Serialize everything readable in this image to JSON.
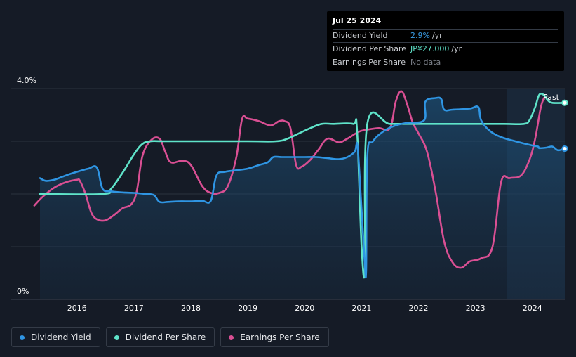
{
  "tooltip": {
    "date": "Jul 25 2024",
    "rows": [
      {
        "label": "Dividend Yield",
        "value": "2.9%",
        "unit": "/yr"
      },
      {
        "label": "Dividend Per Share",
        "value": "JP¥27.000",
        "unit": "/yr"
      },
      {
        "label": "Earnings Per Share",
        "value": "No data",
        "unit": ""
      }
    ]
  },
  "legend": [
    {
      "label": "Dividend Yield",
      "color": "#2f95e3"
    },
    {
      "label": "Dividend Per Share",
      "color": "#5fe3c9"
    },
    {
      "label": "Earnings Per Share",
      "color": "#d94f93"
    }
  ],
  "past_label": "Past",
  "chart_data": {
    "type": "line",
    "y_labels": [
      "4.0%",
      "0%"
    ],
    "ylim": [
      0,
      4.0
    ],
    "xlim": [
      2015.35,
      2024.57
    ],
    "x_ticks": [
      "2016",
      "2017",
      "2018",
      "2019",
      "2020",
      "2021",
      "2022",
      "2023",
      "2024"
    ],
    "grid": true,
    "forecast_start": 2023.55,
    "series": [
      {
        "name": "Dividend Yield",
        "color": "#2f95e3",
        "points": [
          [
            2015.35,
            2.3
          ],
          [
            2015.45,
            2.25
          ],
          [
            2015.6,
            2.27
          ],
          [
            2015.8,
            2.35
          ],
          [
            2016.0,
            2.42
          ],
          [
            2016.2,
            2.48
          ],
          [
            2016.35,
            2.5
          ],
          [
            2016.45,
            2.1
          ],
          [
            2016.6,
            2.05
          ],
          [
            2016.8,
            2.03
          ],
          [
            2017.0,
            2.02
          ],
          [
            2017.2,
            2.0
          ],
          [
            2017.35,
            1.98
          ],
          [
            2017.45,
            1.85
          ],
          [
            2017.6,
            1.85
          ],
          [
            2017.8,
            1.86
          ],
          [
            2018.0,
            1.86
          ],
          [
            2018.2,
            1.87
          ],
          [
            2018.35,
            1.87
          ],
          [
            2018.45,
            2.35
          ],
          [
            2018.6,
            2.42
          ],
          [
            2018.8,
            2.45
          ],
          [
            2019.0,
            2.48
          ],
          [
            2019.2,
            2.55
          ],
          [
            2019.35,
            2.6
          ],
          [
            2019.45,
            2.7
          ],
          [
            2019.6,
            2.7
          ],
          [
            2019.8,
            2.7
          ],
          [
            2020.0,
            2.7
          ],
          [
            2020.2,
            2.7
          ],
          [
            2020.4,
            2.68
          ],
          [
            2020.6,
            2.66
          ],
          [
            2020.75,
            2.7
          ],
          [
            2020.88,
            2.8
          ],
          [
            2020.93,
            2.9
          ],
          [
            2021.0,
            1.7
          ],
          [
            2021.05,
            0.8
          ],
          [
            2021.08,
            0.55
          ],
          [
            2021.1,
            2.7
          ],
          [
            2021.2,
            3.0
          ],
          [
            2021.4,
            3.2
          ],
          [
            2021.6,
            3.3
          ],
          [
            2021.8,
            3.35
          ],
          [
            2022.1,
            3.4
          ],
          [
            2022.12,
            3.75
          ],
          [
            2022.3,
            3.82
          ],
          [
            2022.4,
            3.8
          ],
          [
            2022.45,
            3.6
          ],
          [
            2022.6,
            3.6
          ],
          [
            2022.9,
            3.62
          ],
          [
            2023.05,
            3.65
          ],
          [
            2023.1,
            3.4
          ],
          [
            2023.25,
            3.2
          ],
          [
            2023.45,
            3.08
          ],
          [
            2023.7,
            3.0
          ],
          [
            2024.0,
            2.92
          ],
          [
            2024.1,
            2.9
          ],
          [
            2024.12,
            2.87
          ],
          [
            2024.25,
            2.88
          ],
          [
            2024.35,
            2.9
          ],
          [
            2024.45,
            2.83
          ],
          [
            2024.57,
            2.86
          ]
        ]
      },
      {
        "name": "Dividend Per Share",
        "color": "#5fe3c9",
        "points": [
          [
            2015.35,
            2.0
          ],
          [
            2016.45,
            2.0
          ],
          [
            2016.6,
            2.1
          ],
          [
            2016.8,
            2.4
          ],
          [
            2017.0,
            2.75
          ],
          [
            2017.15,
            2.95
          ],
          [
            2017.3,
            3.0
          ],
          [
            2017.5,
            3.0
          ],
          [
            2018.0,
            3.0
          ],
          [
            2019.0,
            3.0
          ],
          [
            2019.5,
            3.0
          ],
          [
            2019.7,
            3.05
          ],
          [
            2019.9,
            3.15
          ],
          [
            2020.1,
            3.25
          ],
          [
            2020.3,
            3.33
          ],
          [
            2020.5,
            3.33
          ],
          [
            2020.85,
            3.33
          ],
          [
            2020.92,
            3.2
          ],
          [
            2021.0,
            1.0
          ],
          [
            2021.06,
            0.6
          ],
          [
            2021.1,
            3.33
          ],
          [
            2021.5,
            3.33
          ],
          [
            2022.0,
            3.33
          ],
          [
            2022.5,
            3.33
          ],
          [
            2023.0,
            3.33
          ],
          [
            2023.5,
            3.33
          ],
          [
            2023.85,
            3.33
          ],
          [
            2023.95,
            3.4
          ],
          [
            2024.05,
            3.65
          ],
          [
            2024.12,
            3.88
          ],
          [
            2024.2,
            3.88
          ],
          [
            2024.27,
            3.78
          ],
          [
            2024.35,
            3.73
          ],
          [
            2024.57,
            3.73
          ]
        ]
      },
      {
        "name": "Earnings Per Share",
        "color": "#d94f93",
        "points": [
          [
            2015.25,
            1.78
          ],
          [
            2015.4,
            1.95
          ],
          [
            2015.6,
            2.12
          ],
          [
            2015.8,
            2.22
          ],
          [
            2016.0,
            2.27
          ],
          [
            2016.05,
            2.25
          ],
          [
            2016.15,
            2.0
          ],
          [
            2016.25,
            1.65
          ],
          [
            2016.35,
            1.52
          ],
          [
            2016.5,
            1.5
          ],
          [
            2016.65,
            1.6
          ],
          [
            2016.8,
            1.73
          ],
          [
            2016.95,
            1.8
          ],
          [
            2017.05,
            2.05
          ],
          [
            2017.15,
            2.72
          ],
          [
            2017.3,
            3.02
          ],
          [
            2017.45,
            3.05
          ],
          [
            2017.55,
            2.8
          ],
          [
            2017.65,
            2.6
          ],
          [
            2017.85,
            2.63
          ],
          [
            2018.0,
            2.55
          ],
          [
            2018.2,
            2.15
          ],
          [
            2018.35,
            2.02
          ],
          [
            2018.5,
            2.02
          ],
          [
            2018.65,
            2.15
          ],
          [
            2018.8,
            2.7
          ],
          [
            2018.9,
            3.42
          ],
          [
            2019.0,
            3.43
          ],
          [
            2019.2,
            3.38
          ],
          [
            2019.4,
            3.3
          ],
          [
            2019.55,
            3.38
          ],
          [
            2019.65,
            3.38
          ],
          [
            2019.75,
            3.25
          ],
          [
            2019.85,
            2.55
          ],
          [
            2019.95,
            2.52
          ],
          [
            2020.1,
            2.65
          ],
          [
            2020.25,
            2.85
          ],
          [
            2020.4,
            3.05
          ],
          [
            2020.6,
            2.98
          ],
          [
            2020.75,
            3.05
          ],
          [
            2020.95,
            3.18
          ],
          [
            2021.1,
            3.22
          ],
          [
            2021.3,
            3.25
          ],
          [
            2021.5,
            3.25
          ],
          [
            2021.6,
            3.75
          ],
          [
            2021.7,
            3.95
          ],
          [
            2021.8,
            3.7
          ],
          [
            2021.9,
            3.35
          ],
          [
            2022.0,
            3.15
          ],
          [
            2022.15,
            2.8
          ],
          [
            2022.3,
            2.05
          ],
          [
            2022.45,
            1.1
          ],
          [
            2022.6,
            0.7
          ],
          [
            2022.75,
            0.6
          ],
          [
            2022.9,
            0.72
          ],
          [
            2023.1,
            0.78
          ],
          [
            2023.3,
            1.0
          ],
          [
            2023.45,
            2.22
          ],
          [
            2023.6,
            2.3
          ],
          [
            2023.8,
            2.35
          ],
          [
            2023.95,
            2.65
          ],
          [
            2024.05,
            3.05
          ],
          [
            2024.15,
            3.65
          ],
          [
            2024.22,
            3.85
          ]
        ]
      }
    ]
  }
}
